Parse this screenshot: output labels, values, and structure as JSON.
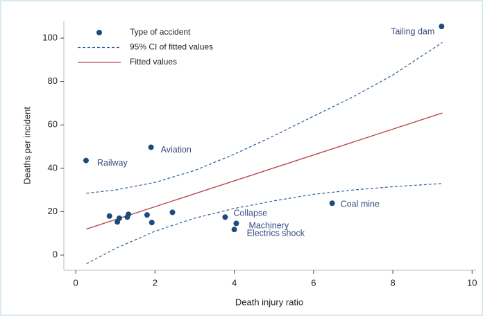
{
  "chart_data": {
    "type": "scatter",
    "x_label": "Death injury ratio",
    "y_label": "Deaths per incident",
    "xlim": [
      -0.3,
      10.1
    ],
    "ylim": [
      -7,
      108
    ],
    "xticks": [
      0,
      2,
      4,
      6,
      8,
      10
    ],
    "yticks": [
      0,
      20,
      40,
      60,
      80,
      100
    ],
    "legend": "top-left",
    "series": [
      {
        "name": "Type of accident",
        "kind": "points",
        "color": "#1d4b7a",
        "x": [
          0.26,
          1.9,
          9.23,
          6.47,
          3.77,
          4.05,
          4.0,
          0.85,
          1.05,
          1.1,
          1.3,
          1.33,
          1.8,
          1.92,
          2.44
        ],
        "values": [
          43.6,
          49.7,
          105.4,
          23.9,
          17.5,
          14.6,
          11.8,
          18,
          15.3,
          17,
          17.5,
          18.8,
          18.5,
          15,
          19.7
        ],
        "point_labels": [
          "Railway",
          "Aviation",
          "Tailing dam",
          "Coal mine",
          "Collapse",
          "Machinery",
          "Electrics shock",
          null,
          null,
          null,
          null,
          null,
          null,
          null,
          null
        ]
      },
      {
        "name": "95% CI of fitted values",
        "kind": "band",
        "color": "#2d5d8f",
        "x": [
          0.27,
          1,
          2,
          3,
          4,
          5,
          6,
          7,
          8,
          9.25
        ],
        "upper": [
          28.5,
          30,
          33.5,
          39,
          46.5,
          55,
          64,
          73,
          83,
          98
        ],
        "lower": [
          -4,
          3,
          11,
          17,
          21.5,
          25,
          28,
          30,
          31.5,
          33
        ]
      },
      {
        "name": "Fitted values",
        "kind": "line",
        "color": "#b5484a",
        "x": [
          0.27,
          9.25
        ],
        "values": [
          12,
          65.5
        ]
      }
    ]
  }
}
